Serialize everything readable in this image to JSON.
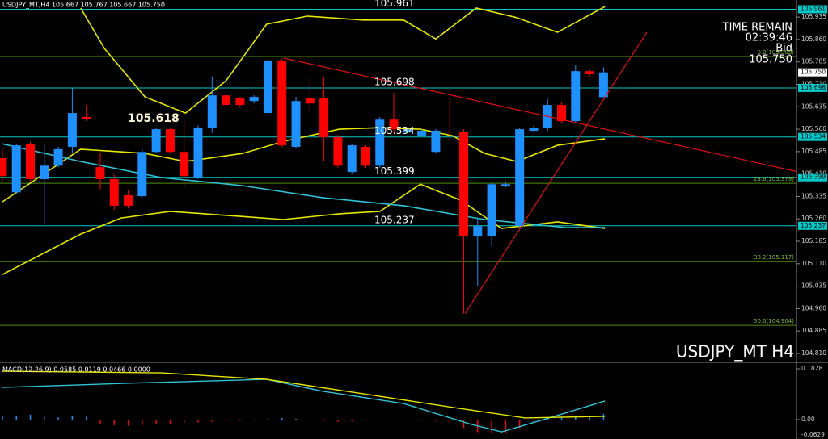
{
  "chart_data": [
    {
      "type": "candlestick",
      "title": "USDJPY_MT,H4  105.667 105.767 105.667 105.750",
      "watermark": "USDJPY_MT H4",
      "annotation": "105.618",
      "info": {
        "time_label": "TIME REMAIN",
        "time": "02:39:46",
        "bid_label": "Bid",
        "bid": {
          "value": 105.75,
          "label": "105.750"
        }
      },
      "categories": [
        null,
        null,
        null,
        null,
        null,
        null,
        null,
        null,
        null,
        null,
        null,
        null,
        null,
        null,
        null,
        null,
        null,
        null,
        null,
        null,
        null,
        null,
        null,
        null,
        null,
        null,
        null,
        null,
        null,
        null,
        null,
        null,
        null,
        null,
        null,
        null,
        null,
        null,
        null,
        null,
        null,
        null,
        null,
        null
      ],
      "open": [
        105.463,
        105.349,
        105.511,
        105.393,
        105.438,
        105.501,
        105.601,
        105.433,
        105.393,
        105.339,
        105.336,
        105.484,
        105.56,
        105.484,
        105.398,
        105.565,
        105.673,
        105.663,
        105.654,
        105.614,
        105.79,
        105.501,
        105.663,
        105.663,
        105.533,
        105.417,
        105.501,
        105.438,
        105.592,
        105.549,
        105.538,
        105.484,
        105.552,
        105.552,
        105.204,
        105.204,
        105.371,
        105.236,
        105.555,
        105.565,
        105.641,
        105.587,
        105.754,
        105.667
      ],
      "high": [
        105.493,
        105.511,
        105.519,
        105.506,
        105.501,
        105.7,
        105.641,
        105.479,
        105.411,
        105.358,
        105.493,
        105.565,
        105.565,
        105.587,
        105.573,
        105.736,
        105.682,
        105.668,
        105.673,
        105.79,
        105.795,
        105.668,
        105.736,
        105.736,
        105.541,
        105.511,
        105.506,
        105.601,
        105.682,
        105.565,
        105.56,
        105.56,
        105.668,
        105.56,
        105.263,
        105.385,
        105.385,
        105.565,
        105.57,
        105.66,
        105.65,
        105.776,
        105.76,
        105.767
      ],
      "low": [
        105.385,
        105.344,
        105.385,
        105.241,
        105.433,
        105.479,
        105.587,
        105.358,
        105.29,
        105.295,
        105.33,
        105.479,
        105.479,
        105.366,
        105.393,
        105.547,
        105.635,
        105.635,
        105.646,
        105.606,
        105.5,
        105.495,
        105.614,
        105.452,
        105.43,
        105.411,
        105.43,
        105.43,
        105.547,
        105.541,
        105.533,
        105.479,
        105.519,
        104.944,
        105.034,
        105.169,
        105.366,
        105.23,
        105.549,
        105.555,
        105.58,
        105.58,
        105.735,
        105.667
      ],
      "close": [
        105.403,
        105.506,
        105.393,
        105.438,
        105.493,
        105.614,
        105.595,
        105.393,
        105.304,
        105.304,
        105.484,
        105.56,
        105.484,
        105.403,
        105.565,
        105.673,
        105.641,
        105.641,
        105.668,
        105.79,
        105.506,
        105.654,
        105.646,
        105.533,
        105.438,
        105.506,
        105.438,
        105.592,
        105.56,
        105.56,
        105.555,
        105.555,
        105.549,
        105.204,
        105.236,
        105.376,
        105.376,
        105.56,
        105.565,
        105.641,
        105.587,
        105.754,
        105.744,
        105.75
      ],
      "up_color": "#1e90ff",
      "down_color": "#ff0000",
      "xlim": [
        -0.17,
        56.8
      ],
      "ylim": [
        104.783,
        105.992
      ],
      "yticks": [
        105.935,
        {
          "value": 105.86,
          "label": "105.860"
        },
        105.785,
        {
          "value": 105.71,
          "label": "105.710"
        },
        105.635,
        {
          "value": 105.56,
          "label": "105.560"
        },
        105.485,
        {
          "value": 105.41,
          "label": "105.410"
        },
        105.335,
        {
          "value": 105.26,
          "label": "105.260"
        },
        105.185,
        {
          "value": 105.11,
          "label": "105.110"
        },
        105.035,
        {
          "value": 104.96,
          "label": "104.960"
        },
        104.885,
        {
          "value": 104.81,
          "label": "104.810"
        }
      ],
      "hlines": [
        105.961,
        105.698,
        105.534,
        105.399,
        105.237
      ],
      "hline_color": "#00c8c8",
      "fib": [
        {
          "value": 105.803,
          "label": "0.0(105.803)"
        },
        {
          "value": 105.379,
          "label": "23.6(105.379)"
        },
        {
          "value": 105.117,
          "label": "38.2(105.117)"
        },
        {
          "value": 104.904,
          "label": "50.0(104.904)"
        }
      ],
      "fib_color": "#4f8f10",
      "overlays": [
        {
          "color": "#e6e600",
          "x": [
            5.6,
            7.3,
            10.2,
            13.1,
            16.0,
            18.9,
            21.8,
            25.8,
            28.7,
            31.0,
            33.9,
            36.8,
            39.7,
            43.1
          ],
          "values": [
            105.965,
            105.83,
            105.668,
            105.614,
            105.722,
            105.911,
            105.938,
            105.925,
            105.925,
            105.862,
            105.965,
            105.933,
            105.884,
            105.97
          ]
        },
        {
          "color": "#e6e600",
          "x": [
            0,
            5.6,
            10.2,
            13.1,
            17.2,
            20.1,
            24.1,
            27.0,
            29.9,
            32.2,
            34.5,
            36.8,
            39.7,
            43.1
          ],
          "values": [
            105.317,
            105.493,
            105.479,
            105.452,
            105.479,
            105.519,
            105.56,
            105.565,
            105.56,
            105.538,
            105.479,
            105.452,
            105.506,
            105.528
          ]
        },
        {
          "color": "#e6e600",
          "x": [
            0,
            5.6,
            8.5,
            12.0,
            17.2,
            20.1,
            24.1,
            27.0,
            29.9,
            32.8,
            35.7,
            39.7,
            43.1
          ],
          "values": [
            105.074,
            105.209,
            105.263,
            105.285,
            105.268,
            105.258,
            105.277,
            105.285,
            105.376,
            105.322,
            105.228,
            105.25,
            105.228
          ]
        },
        {
          "color": "#2ec4d6",
          "x": [
            0,
            5.6,
            11.4,
            17.2,
            22.9,
            28.7,
            34.5,
            40.3,
            43.1
          ],
          "values": [
            105.511,
            105.452,
            105.398,
            105.371,
            105.331,
            105.304,
            105.258,
            105.231,
            105.231
          ]
        }
      ],
      "trendlines": [
        {
          "color": "#e01010",
          "x": [
            20.1,
            58.8
          ],
          "values": [
            105.798,
            105.398
          ]
        },
        {
          "color": "#e01010",
          "x": [
            33.1,
            46.1
          ],
          "values": [
            104.944,
            105.884
          ]
        }
      ]
    },
    {
      "type": "macd",
      "title": "MACD(12,26,9) 0.0585 0.0119 0.0466 0.0000",
      "values": [
        0.012,
        0.015,
        0.018,
        0.01,
        0.008,
        0.014,
        0.01,
        -0.015,
        -0.02,
        -0.022,
        -0.02,
        -0.018,
        -0.015,
        -0.012,
        -0.01,
        -0.008,
        -0.006,
        -0.005,
        -0.004,
        0.004,
        0.006,
        0.003,
        -0.003,
        -0.005,
        -0.008,
        -0.006,
        -0.004,
        -0.003,
        -0.002,
        -0.003,
        -0.004,
        -0.005,
        -0.008,
        -0.03,
        -0.045,
        -0.05,
        -0.048,
        -0.03,
        -0.01,
        0.005,
        0.01,
        0.012,
        0.015,
        0.02
      ],
      "pos_color": "#1e90ff",
      "neg_color": "#ff0000",
      "lines": [
        {
          "color": "#2ec4d6",
          "x": [
            0,
            9.1,
            18.9,
            22.9,
            28.7,
            33.4,
            35.7,
            39.1,
            43.1
          ],
          "values": [
            0.116,
            0.131,
            0.145,
            0.102,
            0.058,
            -0.015,
            -0.044,
            0.006,
            0.067
          ]
        },
        {
          "color": "#e6e600",
          "x": [
            0,
            11.4,
            18.9,
            25.8,
            32.2,
            37.4,
            43.1
          ],
          "values": [
            0.174,
            0.168,
            0.145,
            0.093,
            0.044,
            0.006,
            0.012
          ]
        }
      ],
      "xlim": [
        -0.17,
        56.8
      ],
      "ylim": [
        -0.0696,
        0.1973
      ],
      "yticks": [
        0.1828,
        {
          "value": 0,
          "label": "0.00"
        },
        -0.0629
      ]
    }
  ]
}
